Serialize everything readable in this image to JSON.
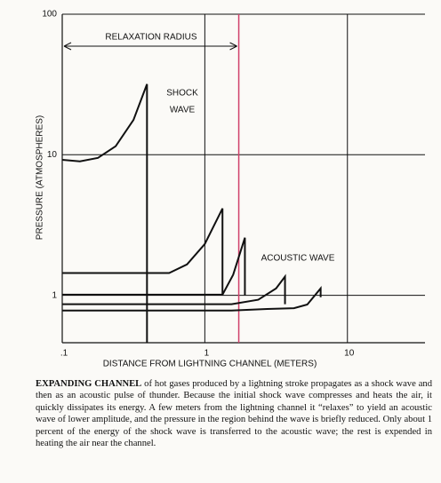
{
  "chart_data": {
    "type": "line",
    "ylabel": "PRESSURE (ATMOSPHERES)",
    "xlabel": "DISTANCE FROM LIGHTNING CHANNEL (METERS)",
    "xlog": true,
    "ylog": true,
    "grid": true,
    "xlim": [
      0.1,
      35
    ],
    "ylim": [
      0.46,
      100
    ],
    "xticks": [
      {
        "value": 0.1,
        "label": ".1"
      },
      1,
      10
    ],
    "yticks": [
      100,
      10,
      1
    ],
    "color": "#111111",
    "series": [
      {
        "x": [
          0.1,
          0.133,
          0.178,
          0.237,
          0.316,
          0.393,
          0.393
        ],
        "values": [
          9.2,
          8.97,
          9.5,
          11.5,
          17.7,
          31.8,
          0.46
        ]
      },
      {
        "x": [
          0.1,
          0.562,
          0.75,
          1.0,
          1.33,
          1.33
        ],
        "values": [
          1.44,
          1.44,
          1.66,
          2.32,
          4.15,
          1.0
        ]
      },
      {
        "x": [
          0.1,
          1.33,
          1.58,
          1.91,
          1.91
        ],
        "values": [
          1.01,
          1.01,
          1.4,
          2.57,
          1.0
        ]
      },
      {
        "x": [
          0.1,
          1.54,
          2.37,
          3.16,
          3.65,
          3.65
        ],
        "values": [
          0.865,
          0.865,
          0.93,
          1.12,
          1.36,
          0.865
        ]
      },
      {
        "x": [
          0.1,
          1.54,
          2.74,
          4.22,
          5.23,
          6.49,
          6.49
        ],
        "values": [
          0.78,
          0.78,
          0.8,
          0.81,
          0.86,
          1.12,
          0.97
        ]
      }
    ],
    "relaxation_radius": 1.73,
    "relaxation_color": "#d0406a",
    "annotations": {
      "relaxation": "RELAXATION RADIUS",
      "shock": [
        "SHOCK",
        "WAVE"
      ],
      "acoustic": "ACOUSTIC WAVE"
    }
  },
  "caption": {
    "lead": "EXPANDING CHANNEL",
    "text": " of hot gases produced by a lightning stroke propagates as a shock wave and then as an acoustic pulse of thunder. Because the initial shock wave compresses and heats the air, it quickly dissipates its energy. A few meters from the lightning channel it “relaxes” to yield an acoustic wave of lower amplitude, and the pressure in the region behind the wave is briefly reduced. Only about 1 percent of the energy of the shock wave is transferred to the acoustic wave; the rest is expended in heating the air near the channel."
  }
}
